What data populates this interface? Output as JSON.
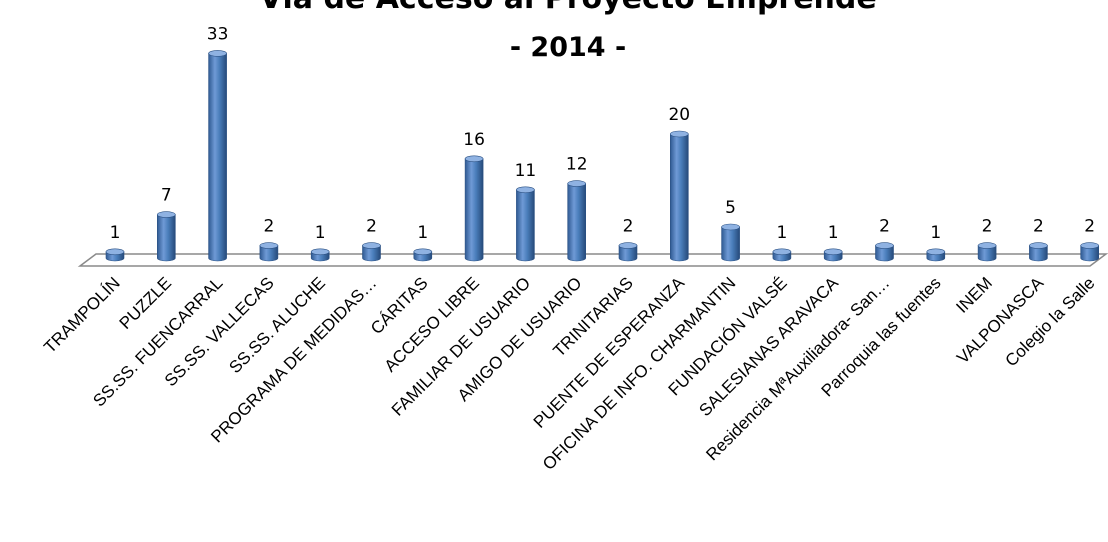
{
  "chart_data": {
    "type": "bar",
    "title": "Vía de Acceso al Proyecto Emprende",
    "subtitle": "- 2014 -",
    "categories": [
      "TRAMPOLÍN",
      "PUZZLE",
      "SS.SS. FUENCARRAL",
      "SS.SS. VALLECAS",
      "SS.SS. ALUCHE",
      "PROGRAMA DE MEDIDAS…",
      "CÁRITAS",
      "ACCESO LIBRE",
      "FAMILIAR DE USUARIO",
      "AMIGO DE USUARIO",
      "TRINITARIAS",
      "PUENTE DE ESPERANZA",
      "OFICINA DE INFO. CHARMANTIN",
      "FUNDACIÓN VALSÉ",
      "SALESIANAS ARAVACA",
      "Residencia MªAuxiliadora- San…",
      "Parroquia las fuentes",
      "INEM",
      "VALPONASCA",
      "Colegio la Salle"
    ],
    "values": [
      1,
      7,
      33,
      2,
      1,
      2,
      1,
      16,
      11,
      12,
      2,
      20,
      5,
      1,
      1,
      2,
      1,
      2,
      2,
      2
    ],
    "data_labels": true,
    "grid": false,
    "legend": "none",
    "bar_color": "#4a7ebb",
    "bar_highlight": "#8fb2e2",
    "bar_shadow": "#2b5184"
  }
}
